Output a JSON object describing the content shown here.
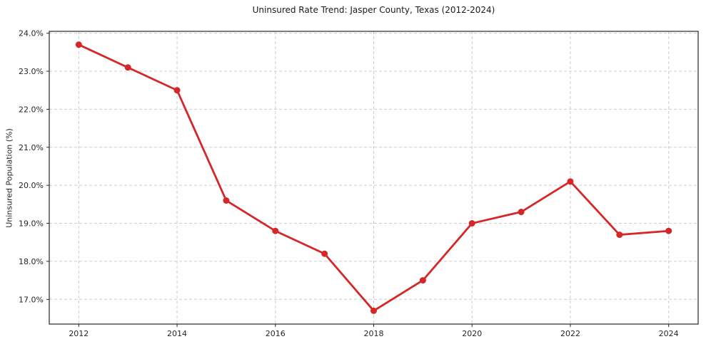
{
  "chart_data": {
    "type": "line",
    "title": "Uninsured Rate Trend: Jasper County, Texas (2012-2024)",
    "xlabel": "",
    "ylabel": "Uninsured Population (%)",
    "x": [
      2012,
      2013,
      2014,
      2015,
      2016,
      2017,
      2018,
      2019,
      2020,
      2021,
      2022,
      2023,
      2024
    ],
    "values": [
      23.7,
      23.1,
      22.5,
      19.6,
      18.8,
      18.2,
      16.7,
      17.5,
      19.0,
      19.3,
      20.1,
      18.7,
      18.8
    ],
    "xlim": [
      2011.4,
      2024.6
    ],
    "ylim": [
      16.35,
      24.05
    ],
    "xticks": [
      2012,
      2014,
      2016,
      2018,
      2020,
      2022,
      2024
    ],
    "yticks": [
      17.0,
      18.0,
      19.0,
      20.0,
      21.0,
      22.0,
      23.0,
      24.0
    ],
    "ytick_decimals": 1,
    "ytick_suffix": "%",
    "grid": true,
    "legend_position": "none",
    "line_color": "#d62728",
    "marker": "circle",
    "grid_color": "#cccccc",
    "spine_color": "#262626",
    "text_color": "#262626",
    "background_color": "#ffffff"
  }
}
